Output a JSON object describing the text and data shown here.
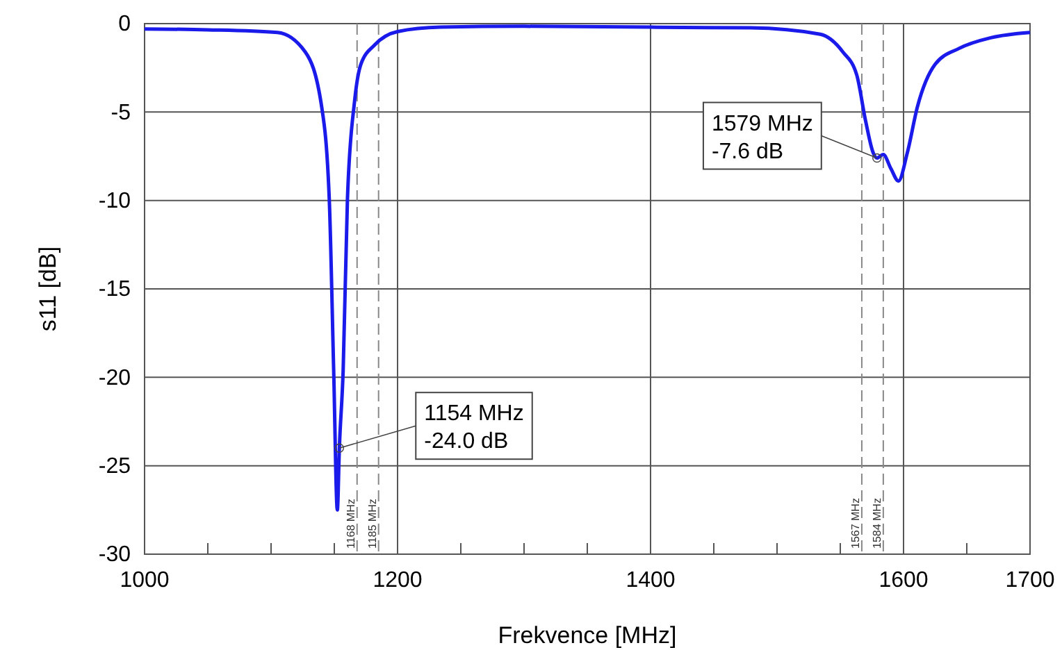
{
  "chart_data": {
    "type": "line",
    "xlabel": "Frekvence [MHz]",
    "ylabel": "s11 [dB]",
    "xlim": [
      1000,
      1700
    ],
    "ylim": [
      -30,
      0
    ],
    "xticks": [
      1000,
      {
        "value": 1050,
        "label": null
      },
      {
        "value": 1100,
        "label": null
      },
      {
        "value": 1150,
        "label": null
      },
      1200,
      {
        "value": 1250,
        "label": null
      },
      {
        "value": 1300,
        "label": null
      },
      {
        "value": 1350,
        "label": null
      },
      1400,
      {
        "value": 1450,
        "label": null
      },
      {
        "value": 1500,
        "label": null
      },
      {
        "value": 1550,
        "label": null
      },
      1600,
      {
        "value": 1650,
        "label": null
      },
      1700
    ],
    "yticks": [
      -30,
      -25,
      -20,
      -15,
      -10,
      -5,
      0
    ],
    "grid": true,
    "line_style": "solid",
    "marker": "none",
    "series": [
      {
        "color": "#1a1aeb",
        "x": [
          1000,
          1050,
          1105,
          1127,
          1140,
          1146,
          1149.5,
          1152.4,
          1154,
          1157,
          1160.4,
          1166,
          1171,
          1182,
          1200,
          1234,
          1300,
          1400,
          1479,
          1534,
          1552,
          1563,
          1570,
          1576,
          1579,
          1584,
          1590,
          1596,
          1603,
          1611,
          1625,
          1644,
          1669,
          1700
        ],
        "values": [
          -0.3,
          -0.35,
          -0.5,
          -1.6,
          -4.7,
          -9.9,
          -19.6,
          -27.5,
          -24.0,
          -19.6,
          -9.9,
          -4.4,
          -2.3,
          -1.2,
          -0.45,
          -0.2,
          -0.15,
          -0.2,
          -0.24,
          -0.6,
          -1.6,
          -2.9,
          -5.5,
          -7.3,
          -7.6,
          -7.4,
          -8.2,
          -8.9,
          -7.3,
          -4.7,
          -2.3,
          -1.4,
          -0.8,
          -0.5
        ]
      }
    ],
    "ref_lines": [
      {
        "axis": "x",
        "value": 1168,
        "label": "1168 MHz",
        "line_style": "dashed",
        "color": "#888888"
      },
      {
        "axis": "x",
        "value": 1185,
        "label": "1185 MHz",
        "line_style": "dashed",
        "color": "#888888"
      },
      {
        "axis": "x",
        "value": 1567,
        "label": "1567 MHz",
        "line_style": "dashed",
        "color": "#888888"
      },
      {
        "axis": "x",
        "value": 1584,
        "label": "1584 MHz",
        "line_style": "dashed",
        "color": "#888888"
      }
    ],
    "annotations": [
      {
        "text": "1154 MHz\n-24.0 dB",
        "x": 1154,
        "y": -24.0
      },
      {
        "text": "1579 MHz\n-7.6 dB",
        "x": 1579,
        "y": -7.6
      }
    ]
  }
}
